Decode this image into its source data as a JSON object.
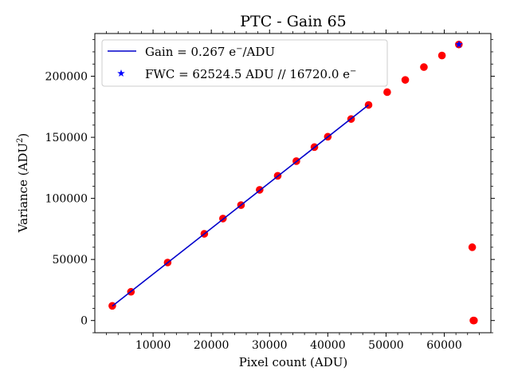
{
  "chart_data": {
    "type": "scatter",
    "title": "PTC - Gain 65",
    "xlabel": "Pixel count (ADU)",
    "ylabel_main": "Variance (ADU",
    "ylabel_sup": "2",
    "ylabel_close": ")",
    "xlim": [
      0,
      68000
    ],
    "ylim": [
      -10000,
      235000
    ],
    "xticks": [
      10000,
      20000,
      30000,
      40000,
      50000,
      60000
    ],
    "xtick_labels": [
      "10000",
      "20000",
      "30000",
      "40000",
      "50000",
      "60000"
    ],
    "yticks": [
      0,
      50000,
      100000,
      150000,
      200000
    ],
    "ytick_labels": [
      "0",
      "50000",
      "100000",
      "150000",
      "200000"
    ],
    "legend_position": "upper-left",
    "points_color": "#ff0000",
    "fit_color": "#0000cc",
    "fwc_color": "#0000ff",
    "points": {
      "x": [
        3000,
        6200,
        12500,
        18800,
        22000,
        25100,
        28300,
        31400,
        34600,
        37700,
        40000,
        44000,
        47000,
        50200,
        53300,
        56500,
        59600,
        62500,
        64800,
        65000,
        65100
      ],
      "y": [
        12000,
        23500,
        47500,
        71000,
        83500,
        94500,
        107000,
        118500,
        130500,
        142000,
        150500,
        165000,
        176500,
        187000,
        197000,
        207500,
        217000,
        226000,
        60000,
        0,
        0
      ]
    },
    "fit": {
      "label_main": "Gain = 0.267 e",
      "label_sup": "−",
      "label_tail": "/ADU",
      "x": [
        3000,
        47000
      ],
      "y": [
        11800,
        176500
      ]
    },
    "fwc": {
      "label_main": "FWC = 62524.5 ADU // 16720.0 e",
      "label_sup": "−",
      "x": 62524.5,
      "y": 226000
    }
  }
}
